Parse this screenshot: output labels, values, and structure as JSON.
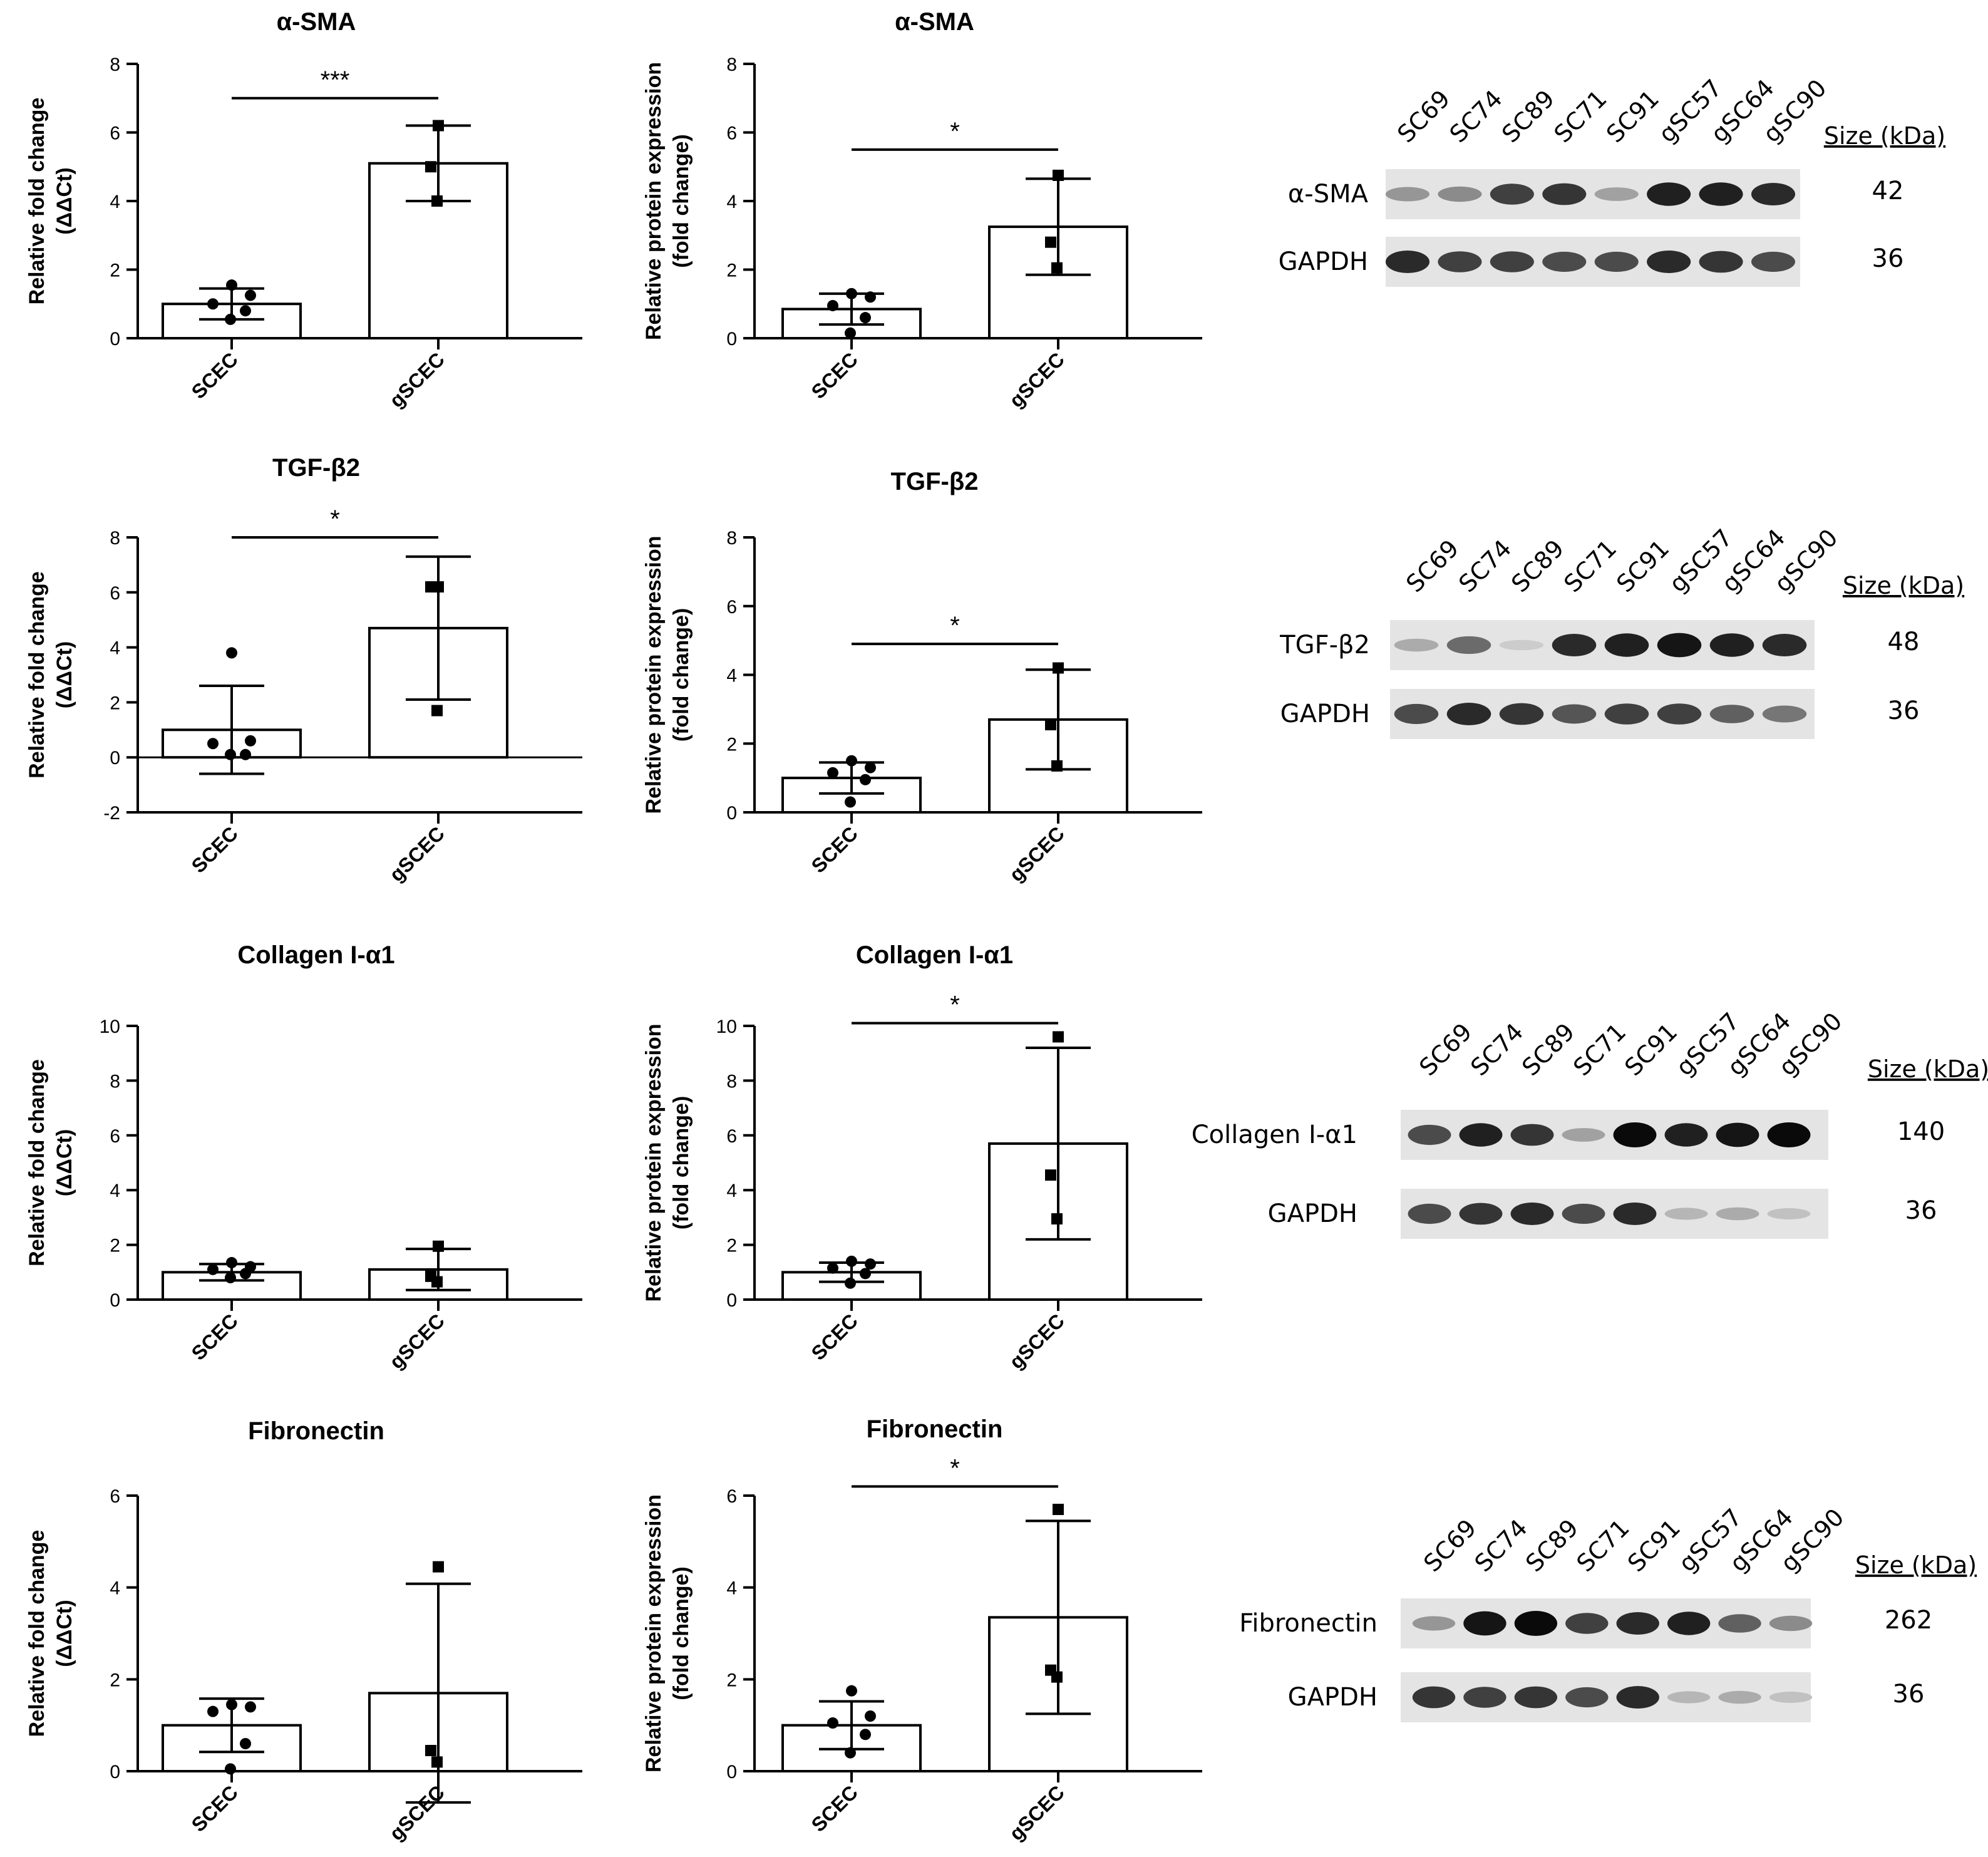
{
  "figure": {
    "group_labels": [
      "SCEC",
      "gSCEC"
    ],
    "marker_shapes": [
      "circle",
      "square"
    ],
    "bar_fill": "#ffffff",
    "ink_color": "#000000"
  },
  "chart_data": [
    {
      "type": "bar",
      "title": "α-SMA",
      "ylabel": [
        "Relative fold change",
        "(ΔΔCt)"
      ],
      "categories": [
        "SCEC",
        "gSCEC"
      ],
      "ylim": [
        0,
        8
      ],
      "yticks": [
        0,
        2,
        4,
        6,
        8
      ],
      "means": [
        1.0,
        5.1
      ],
      "sd": [
        0.45,
        1.1
      ],
      "points": [
        [
          1.55,
          1.25,
          1.0,
          0.8,
          0.55
        ],
        [
          6.2,
          5.0,
          4.0
        ]
      ],
      "significance": {
        "label": "***",
        "y": 7.0
      }
    },
    {
      "type": "bar",
      "title": "α-SMA",
      "ylabel": [
        "Relative protein expression",
        "(fold change)"
      ],
      "categories": [
        "SCEC",
        "gSCEC"
      ],
      "ylim": [
        0,
        8
      ],
      "yticks": [
        0,
        2,
        4,
        6,
        8
      ],
      "means": [
        0.85,
        3.25
      ],
      "sd": [
        0.45,
        1.4
      ],
      "points": [
        [
          1.3,
          1.2,
          0.95,
          0.6,
          0.15
        ],
        [
          4.75,
          2.8,
          2.05
        ]
      ],
      "significance": {
        "label": "*",
        "y": 5.5
      }
    },
    {
      "type": "bar",
      "title": "TGF-β2",
      "ylabel": [
        "Relative fold change",
        "(ΔΔCt)"
      ],
      "categories": [
        "SCEC",
        "gSCEC"
      ],
      "ylim": [
        -2,
        8
      ],
      "yticks": [
        -2,
        0,
        2,
        4,
        6,
        8
      ],
      "zero_line": true,
      "means": [
        1.0,
        4.7
      ],
      "sd": [
        1.6,
        2.6
      ],
      "points": [
        [
          3.8,
          0.6,
          0.5,
          0.1,
          0.1
        ],
        [
          6.2,
          6.2,
          1.7
        ]
      ],
      "significance": {
        "label": "*",
        "y": 8.0
      }
    },
    {
      "type": "bar",
      "title": "TGF-β2",
      "ylabel": [
        "Relative protein expression",
        "(fold change)"
      ],
      "categories": [
        "SCEC",
        "gSCEC"
      ],
      "ylim": [
        0,
        8
      ],
      "yticks": [
        0,
        2,
        4,
        6,
        8
      ],
      "means": [
        1.0,
        2.7
      ],
      "sd": [
        0.45,
        1.45
      ],
      "points": [
        [
          1.5,
          1.3,
          1.15,
          0.95,
          0.3
        ],
        [
          4.2,
          2.55,
          1.35
        ]
      ],
      "significance": {
        "label": "*",
        "y": 4.9
      }
    },
    {
      "type": "bar",
      "title": "Collagen I-α1",
      "ylabel": [
        "Relative fold change",
        "(ΔΔCt)"
      ],
      "categories": [
        "SCEC",
        "gSCEC"
      ],
      "ylim": [
        0,
        10
      ],
      "yticks": [
        0,
        2,
        4,
        6,
        8,
        10
      ],
      "means": [
        1.0,
        1.1
      ],
      "sd": [
        0.3,
        0.75
      ],
      "points": [
        [
          1.35,
          1.2,
          1.1,
          0.95,
          0.8
        ],
        [
          1.95,
          0.85,
          0.65
        ]
      ]
    },
    {
      "type": "bar",
      "title": "Collagen I-α1",
      "ylabel": [
        "Relative protein expression",
        "(fold change)"
      ],
      "categories": [
        "SCEC",
        "gSCEC"
      ],
      "ylim": [
        0,
        10
      ],
      "yticks": [
        0,
        2,
        4,
        6,
        8,
        10
      ],
      "means": [
        1.0,
        5.7
      ],
      "sd": [
        0.35,
        3.5
      ],
      "points": [
        [
          1.4,
          1.3,
          1.15,
          0.95,
          0.6
        ],
        [
          9.6,
          4.55,
          2.95
        ]
      ],
      "significance": {
        "label": "*",
        "y": 10.1
      }
    },
    {
      "type": "bar",
      "title": "Fibronectin",
      "ylabel": [
        "Relative fold change",
        "(ΔΔCt)"
      ],
      "categories": [
        "SCEC",
        "gSCEC"
      ],
      "ylim": [
        0,
        6
      ],
      "yticks": [
        0,
        2,
        4,
        6
      ],
      "means": [
        1.0,
        1.7
      ],
      "sd": [
        0.58,
        2.38
      ],
      "points": [
        [
          1.45,
          1.4,
          1.3,
          0.6,
          0.05
        ],
        [
          4.45,
          0.45,
          0.2
        ]
      ]
    },
    {
      "type": "bar",
      "title": "Fibronectin",
      "ylabel": [
        "Relative protein expression",
        "(fold change)"
      ],
      "categories": [
        "SCEC",
        "gSCEC"
      ],
      "ylim": [
        0,
        6
      ],
      "yticks": [
        0,
        2,
        4,
        6
      ],
      "means": [
        1.0,
        3.35
      ],
      "sd": [
        0.52,
        2.1
      ],
      "points": [
        [
          1.75,
          1.2,
          1.05,
          0.8,
          0.4
        ],
        [
          5.7,
          2.2,
          2.05
        ]
      ],
      "significance": {
        "label": "*",
        "y": 6.2
      }
    }
  ],
  "blots": [
    {
      "lanes": [
        "SC69",
        "SC74",
        "SC89",
        "SC71",
        "SC91",
        "gSC57",
        "gSC64",
        "gSC90"
      ],
      "size_header": "Size (kDa)",
      "rows": [
        {
          "label": "α-SMA",
          "size": "42",
          "intensities": [
            0.35,
            0.4,
            0.75,
            0.8,
            0.3,
            0.9,
            0.9,
            0.85
          ]
        },
        {
          "label": "GAPDH",
          "size": "36",
          "intensities": [
            0.85,
            0.75,
            0.75,
            0.7,
            0.7,
            0.85,
            0.8,
            0.7
          ]
        }
      ]
    },
    {
      "lanes": [
        "SC69",
        "SC74",
        "SC89",
        "SC71",
        "SC91",
        "gSC57",
        "gSC64",
        "gSC90"
      ],
      "size_header": "Size (kDa)",
      "rows": [
        {
          "label": "TGF-β2",
          "size": "48",
          "intensities": [
            0.25,
            0.55,
            0.1,
            0.85,
            0.9,
            0.95,
            0.9,
            0.85
          ]
        },
        {
          "label": "GAPDH",
          "size": "36",
          "intensities": [
            0.7,
            0.85,
            0.8,
            0.65,
            0.75,
            0.75,
            0.6,
            0.5
          ]
        }
      ]
    },
    {
      "lanes": [
        "SC69",
        "SC74",
        "SC89",
        "SC71",
        "SC91",
        "gSC57",
        "gSC64",
        "gSC90"
      ],
      "size_header": "Size (kDa)",
      "rows": [
        {
          "label": "Collagen I-α1",
          "size": "140",
          "intensities": [
            0.7,
            0.9,
            0.8,
            0.3,
            1.0,
            0.9,
            0.95,
            1.0
          ]
        },
        {
          "label": "GAPDH",
          "size": "36",
          "intensities": [
            0.7,
            0.8,
            0.85,
            0.7,
            0.85,
            0.2,
            0.25,
            0.15
          ]
        }
      ]
    },
    {
      "lanes": [
        "SC69",
        "SC74",
        "SC89",
        "SC71",
        "SC91",
        "gSC57",
        "gSC64",
        "gSC90"
      ],
      "size_header": "Size (kDa)",
      "rows": [
        {
          "label": "Fibronectin",
          "size": "262",
          "intensities": [
            0.35,
            0.95,
            1.0,
            0.75,
            0.85,
            0.9,
            0.6,
            0.4
          ]
        },
        {
          "label": "GAPDH",
          "size": "36",
          "intensities": [
            0.8,
            0.75,
            0.8,
            0.7,
            0.85,
            0.2,
            0.25,
            0.15
          ]
        }
      ]
    }
  ]
}
